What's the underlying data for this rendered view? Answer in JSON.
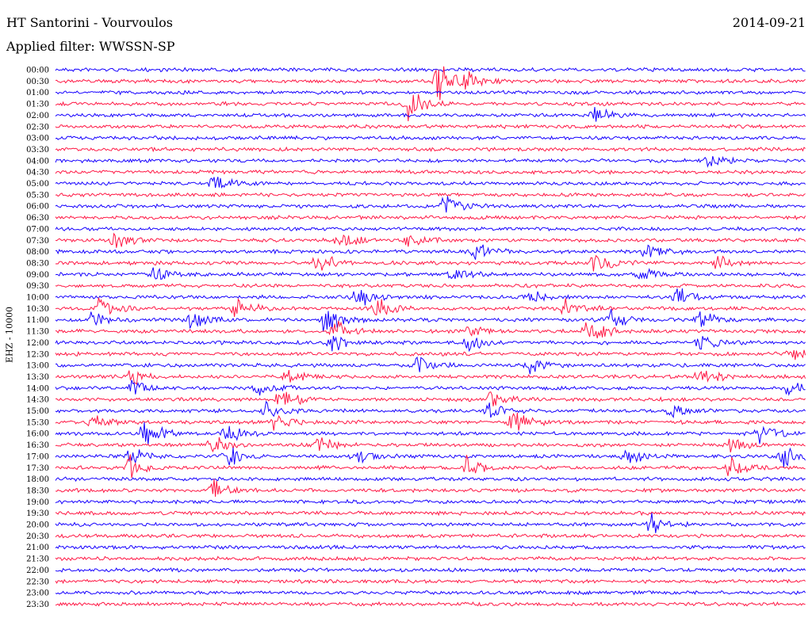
{
  "header": {
    "station": "HT Santorini - Vourvoulos",
    "filter": "Applied filter: WWSSN-SP",
    "date": "2014-09-21",
    "channel": "EHZ - 10000"
  },
  "colors": {
    "blue_trace": "#1500ff",
    "red_trace": "#ff1744"
  },
  "chart_data": {
    "type": "line",
    "title": "HT Santorini - Vourvoulos",
    "subtitle": "Applied filter: WWSSN-SP",
    "ylabel": "EHZ - 10000",
    "date": "2014-09-21",
    "row_labels": [
      "00:00",
      "00:30",
      "01:00",
      "01:30",
      "02:00",
      "02:30",
      "03:00",
      "03:30",
      "04:00",
      "04:30",
      "05:00",
      "05:30",
      "06:00",
      "06:30",
      "07:00",
      "07:30",
      "08:00",
      "08:30",
      "09:00",
      "09:30",
      "10:00",
      "10:30",
      "11:00",
      "11:30",
      "12:00",
      "12:30",
      "13:00",
      "13:30",
      "14:00",
      "14:30",
      "15:00",
      "15:30",
      "16:00",
      "16:30",
      "17:00",
      "17:30",
      "18:00",
      "18:30",
      "19:00",
      "19:30",
      "20:00",
      "20:30",
      "21:00",
      "21:30",
      "22:00",
      "22:30",
      "23:00",
      "23:30"
    ],
    "row_colors": "alternating blue / red",
    "series": [
      {
        "row": "00:30",
        "events": [
          [
            0.51,
            1.4
          ],
          [
            0.54,
            1.0
          ]
        ]
      },
      {
        "row": "01:30",
        "events": [
          [
            0.47,
            1.2
          ]
        ]
      },
      {
        "row": "02:00",
        "events": [
          [
            0.72,
            0.6
          ]
        ]
      },
      {
        "row": "04:00",
        "events": [
          [
            0.87,
            0.5
          ]
        ]
      },
      {
        "row": "05:00",
        "events": [
          [
            0.21,
            0.7
          ]
        ]
      },
      {
        "row": "06:00",
        "events": [
          [
            0.52,
            0.8
          ]
        ]
      },
      {
        "row": "07:30",
        "events": [
          [
            0.08,
            0.8
          ],
          [
            0.38,
            0.7
          ],
          [
            0.47,
            0.6
          ]
        ]
      },
      {
        "row": "08:00",
        "events": [
          [
            0.56,
            0.7
          ],
          [
            0.79,
            0.6
          ]
        ]
      },
      {
        "row": "08:30",
        "events": [
          [
            0.35,
            0.9
          ],
          [
            0.72,
            0.8
          ],
          [
            0.88,
            0.7
          ]
        ]
      },
      {
        "row": "09:00",
        "events": [
          [
            0.13,
            0.6
          ],
          [
            0.53,
            0.6
          ],
          [
            0.78,
            0.7
          ]
        ]
      },
      {
        "row": "10:00",
        "events": [
          [
            0.4,
            1.0
          ],
          [
            0.63,
            0.6
          ],
          [
            0.83,
            0.7
          ]
        ]
      },
      {
        "row": "10:30",
        "events": [
          [
            0.06,
            0.8
          ],
          [
            0.24,
            0.7
          ],
          [
            0.43,
            1.0
          ],
          [
            0.68,
            0.7
          ]
        ]
      },
      {
        "row": "11:00",
        "events": [
          [
            0.05,
            0.6
          ],
          [
            0.18,
            0.8
          ],
          [
            0.36,
            1.1
          ],
          [
            0.74,
            0.8
          ],
          [
            0.86,
            0.7
          ]
        ]
      },
      {
        "row": "11:30",
        "events": [
          [
            0.37,
            0.9
          ],
          [
            0.55,
            0.6
          ],
          [
            0.71,
            0.9
          ]
        ]
      },
      {
        "row": "12:00",
        "events": [
          [
            0.37,
            0.7
          ],
          [
            0.55,
            0.6
          ],
          [
            0.86,
            0.7
          ]
        ]
      },
      {
        "row": "12:30",
        "events": [
          [
            0.98,
            0.6
          ]
        ]
      },
      {
        "row": "13:00",
        "events": [
          [
            0.48,
            0.7
          ],
          [
            0.63,
            0.6
          ]
        ]
      },
      {
        "row": "13:30",
        "events": [
          [
            0.1,
            0.6
          ],
          [
            0.31,
            0.7
          ],
          [
            0.86,
            0.7
          ]
        ]
      },
      {
        "row": "14:00",
        "events": [
          [
            0.1,
            0.7
          ],
          [
            0.27,
            0.6
          ],
          [
            0.98,
            0.8
          ]
        ]
      },
      {
        "row": "14:30",
        "events": [
          [
            0.3,
            0.8
          ],
          [
            0.58,
            0.6
          ]
        ]
      },
      {
        "row": "15:00",
        "events": [
          [
            0.28,
            0.7
          ],
          [
            0.58,
            0.6
          ],
          [
            0.82,
            0.6
          ]
        ]
      },
      {
        "row": "15:30",
        "events": [
          [
            0.05,
            0.6
          ],
          [
            0.29,
            0.7
          ],
          [
            0.61,
            0.8
          ]
        ]
      },
      {
        "row": "16:00",
        "events": [
          [
            0.12,
            1.0
          ],
          [
            0.23,
            0.8
          ],
          [
            0.94,
            0.8
          ]
        ]
      },
      {
        "row": "16:30",
        "events": [
          [
            0.21,
            0.8
          ],
          [
            0.35,
            0.7
          ],
          [
            0.9,
            0.7
          ]
        ]
      },
      {
        "row": "17:00",
        "events": [
          [
            0.1,
            0.8
          ],
          [
            0.23,
            0.8
          ],
          [
            0.4,
            0.7
          ],
          [
            0.76,
            0.6
          ],
          [
            0.97,
            0.9
          ]
        ]
      },
      {
        "row": "17:30",
        "events": [
          [
            0.1,
            0.8
          ],
          [
            0.55,
            0.9
          ],
          [
            0.9,
            0.7
          ]
        ]
      },
      {
        "row": "18:30",
        "events": [
          [
            0.21,
            0.8
          ]
        ]
      },
      {
        "row": "20:00",
        "events": [
          [
            0.79,
            0.9
          ]
        ]
      }
    ]
  }
}
